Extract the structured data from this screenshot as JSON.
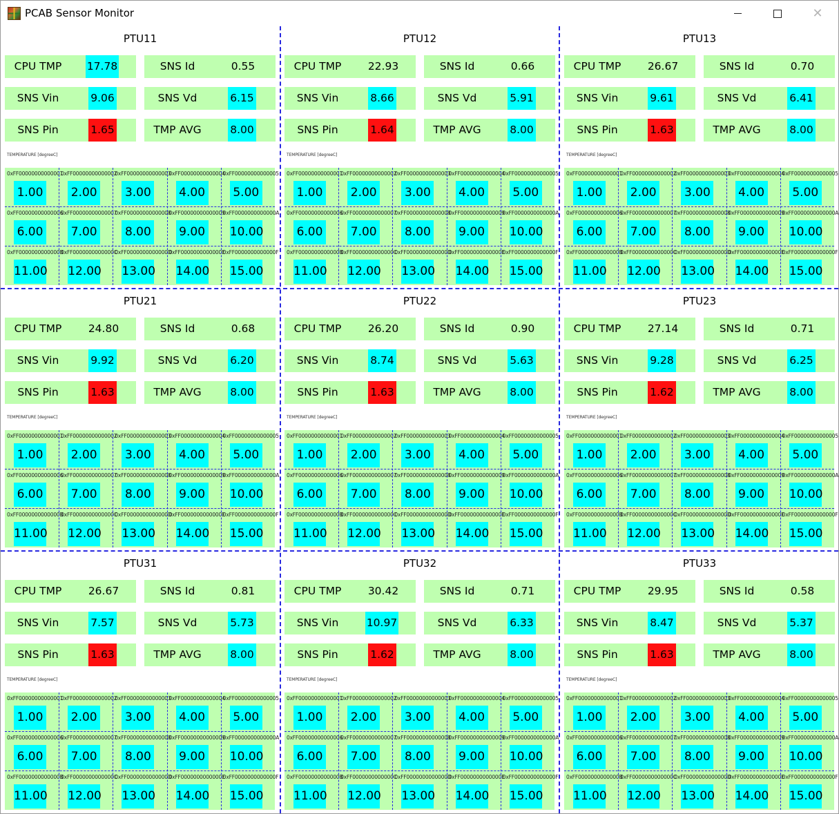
{
  "window": {
    "title": "PCAB Sensor Monitor",
    "icon": "app-grid-icon",
    "controls": {
      "minimize": "minimize-icon",
      "maximize": "maximize-icon",
      "close": "close-icon"
    }
  },
  "labels": {
    "cpu_tmp": "CPU TMP",
    "sns_id": "SNS Id",
    "sns_vin": "SNS Vin",
    "sns_vd": "SNS Vd",
    "sns_pin": "SNS Pin",
    "tmp_avg": "TMP AVG",
    "temperature": "TEMPERATURE [degreeC]"
  },
  "colors": {
    "panel_bg": "#bfffb0",
    "value_ok": "#00ffff",
    "value_alarm": "#ff1010",
    "divider": "#2727e0"
  },
  "sensor_ids": [
    "0xFF00000000000001",
    "0xFF00000000000002",
    "0xFF00000000000003",
    "0xFF00000000000004",
    "0xFF00000000000005",
    "0xFF00000000000006",
    "0xFF00000000000007",
    "0xFF00000000000008",
    "0xFF00000000000009",
    "0xFF0000000000000A",
    "0xFF0000000000000B",
    "0xFF0000000000000C",
    "0xFF0000000000000D",
    "0xFF0000000000000E",
    "0xFF0000000000000F"
  ],
  "sensor_values": [
    "1.00",
    "2.00",
    "3.00",
    "4.00",
    "5.00",
    "6.00",
    "7.00",
    "8.00",
    "9.00",
    "10.00",
    "11.00",
    "12.00",
    "13.00",
    "14.00",
    "15.00"
  ],
  "panels": [
    {
      "name": "PTU11",
      "cpu_tmp": "17.78",
      "cpu_tmp_highlight": true,
      "sns_id": "0.55",
      "sns_vin": "9.06",
      "sns_vd": "6.15",
      "sns_pin": "1.65",
      "tmp_avg": "8.00"
    },
    {
      "name": "PTU12",
      "cpu_tmp": "22.93",
      "cpu_tmp_highlight": false,
      "sns_id": "0.66",
      "sns_vin": "8.66",
      "sns_vd": "5.91",
      "sns_pin": "1.64",
      "tmp_avg": "8.00"
    },
    {
      "name": "PTU13",
      "cpu_tmp": "26.67",
      "cpu_tmp_highlight": false,
      "sns_id": "0.70",
      "sns_vin": "9.61",
      "sns_vd": "6.41",
      "sns_pin": "1.63",
      "tmp_avg": "8.00"
    },
    {
      "name": "PTU21",
      "cpu_tmp": "24.80",
      "cpu_tmp_highlight": false,
      "sns_id": "0.68",
      "sns_vin": "9.92",
      "sns_vd": "6.20",
      "sns_pin": "1.63",
      "tmp_avg": "8.00"
    },
    {
      "name": "PTU22",
      "cpu_tmp": "26.20",
      "cpu_tmp_highlight": false,
      "sns_id": "0.90",
      "sns_vin": "8.74",
      "sns_vd": "5.63",
      "sns_pin": "1.63",
      "tmp_avg": "8.00"
    },
    {
      "name": "PTU23",
      "cpu_tmp": "27.14",
      "cpu_tmp_highlight": false,
      "sns_id": "0.71",
      "sns_vin": "9.28",
      "sns_vd": "6.25",
      "sns_pin": "1.62",
      "tmp_avg": "8.00"
    },
    {
      "name": "PTU31",
      "cpu_tmp": "26.67",
      "cpu_tmp_highlight": false,
      "sns_id": "0.81",
      "sns_vin": "7.57",
      "sns_vd": "5.73",
      "sns_pin": "1.63",
      "tmp_avg": "8.00"
    },
    {
      "name": "PTU32",
      "cpu_tmp": "30.42",
      "cpu_tmp_highlight": false,
      "sns_id": "0.71",
      "sns_vin": "10.97",
      "sns_vd": "6.33",
      "sns_pin": "1.62",
      "tmp_avg": "8.00"
    },
    {
      "name": "PTU33",
      "cpu_tmp": "29.95",
      "cpu_tmp_highlight": false,
      "sns_id": "0.58",
      "sns_vin": "8.47",
      "sns_vd": "5.37",
      "sns_pin": "1.63",
      "tmp_avg": "8.00"
    }
  ]
}
